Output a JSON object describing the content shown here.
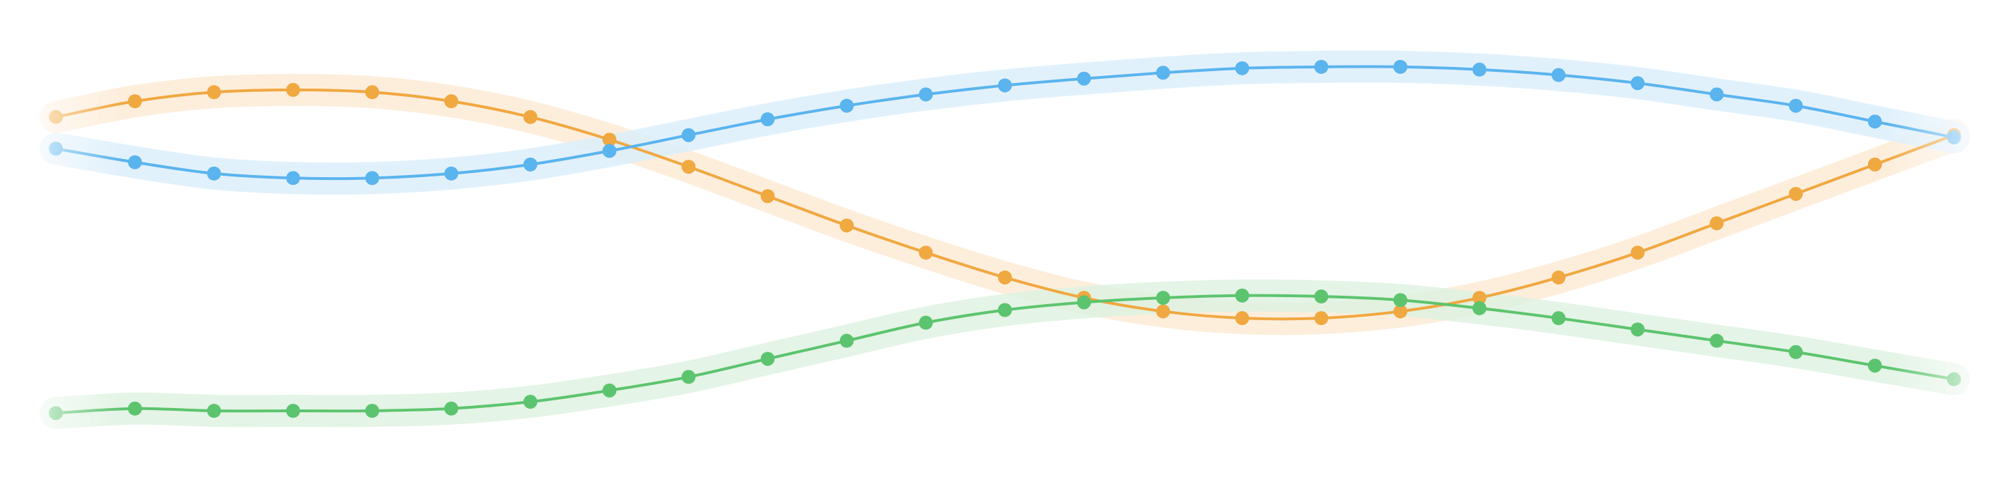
{
  "chart_data": {
    "type": "line",
    "title": "",
    "xlabel": "",
    "ylabel": "",
    "grid": false,
    "legend": "none",
    "x": [
      0,
      1,
      2,
      3,
      4,
      5,
      6,
      7,
      8,
      9,
      10,
      11,
      12,
      13,
      14,
      15,
      16,
      17,
      18,
      19,
      20,
      21,
      22,
      23,
      24
    ],
    "ylim": [
      0,
      100
    ],
    "series": [
      {
        "color": "#F0A840",
        "band_color": "#FDEBD6",
        "values": [
          77.5,
          81,
          83,
          83.5,
          83,
          81,
          77.5,
          72.5,
          66.5,
          60,
          53.5,
          47.5,
          42,
          37.5,
          34.5,
          33,
          33,
          34.5,
          37.5,
          42,
          47.5,
          54,
          60.5,
          67,
          73.5
        ]
      },
      {
        "color": "#5AB4EE",
        "band_color": "#DCEFFC",
        "values": [
          70.5,
          67.5,
          65,
          64,
          64,
          65,
          67,
          70,
          73.5,
          77,
          80,
          82.5,
          84.5,
          86,
          87.3,
          88.3,
          88.6,
          88.6,
          88,
          86.8,
          85,
          82.5,
          80,
          76.5,
          73
        ]
      },
      {
        "color": "#5CC46E",
        "band_color": "#DFF2E2",
        "values": [
          12,
          13,
          12.5,
          12.5,
          12.5,
          13,
          14.5,
          17,
          20,
          24,
          28,
          32,
          34.8,
          36.5,
          37.5,
          38,
          37.8,
          37,
          35.2,
          33,
          30.5,
          28,
          25.5,
          22.5,
          19.5
        ]
      }
    ]
  }
}
